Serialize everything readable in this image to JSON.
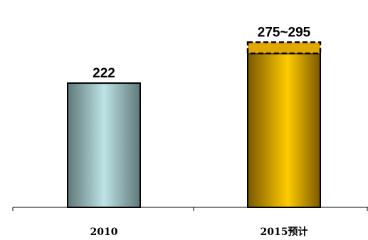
{
  "chart_data": {
    "type": "bar",
    "title": "",
    "xlabel": "",
    "ylabel": "",
    "categories": [
      "2010",
      "2015预计"
    ],
    "values": [
      222,
      275
    ],
    "ranges": [
      null,
      [
        275,
        295
      ]
    ],
    "data_labels": [
      "222",
      "275~295"
    ],
    "ylim": [
      0,
      320
    ],
    "grid": false,
    "legend": "none",
    "colors": {
      "bar_2010_edge": "#5f7878",
      "bar_2010_center": "#bde3e6",
      "bar_2015_edge": "#7a5800",
      "bar_2015_center": "#ffcc00",
      "range_band": "#e0a800",
      "outline": "#000000",
      "axis": "#000000"
    }
  }
}
